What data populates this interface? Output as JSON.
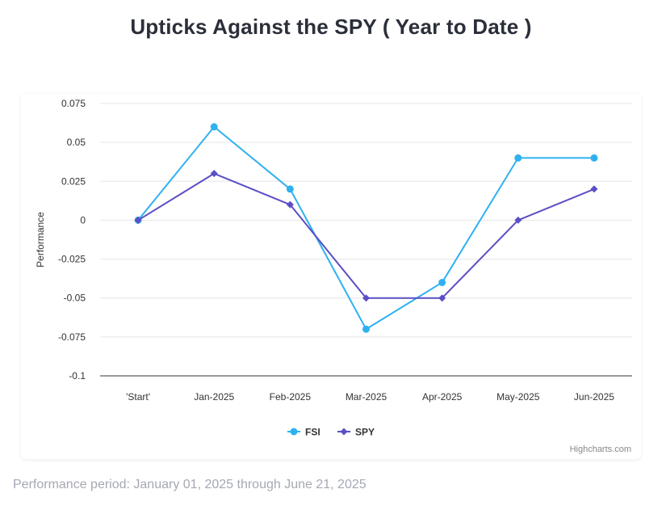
{
  "page": {
    "title": "Upticks Against the SPY ( Year to Date )",
    "performance_note": "Performance period: January 01, 2025 through June 21, 2025",
    "credits": "Highcharts.com"
  },
  "chart_data": {
    "type": "line",
    "title": "Upticks Against the SPY ( Year to Date )",
    "xlabel": "",
    "ylabel": "Performance",
    "categories": [
      "'Start'",
      "Jan-2025",
      "Feb-2025",
      "Mar-2025",
      "Apr-2025",
      "May-2025",
      "Jun-2025"
    ],
    "ylim": [
      -0.1,
      0.075
    ],
    "yticks": [
      0.075,
      0.05,
      0.025,
      0,
      -0.025,
      -0.05,
      -0.075,
      -0.1
    ],
    "ytick_labels": [
      "0.075",
      "0.05",
      "0.025",
      "0",
      "-0.025",
      "-0.05",
      "-0.075",
      "-0.1"
    ],
    "grid": true,
    "legend_position": "bottom-center",
    "series": [
      {
        "name": "FSI",
        "values": [
          0,
          0.06,
          0.02,
          -0.07,
          -0.04,
          0.04,
          0.04
        ],
        "color": "#2fb1f0",
        "marker": "circle"
      },
      {
        "name": "SPY",
        "values": [
          0,
          0.03,
          0.01,
          -0.05,
          -0.05,
          0,
          0.02
        ],
        "color": "#5a4fc4",
        "marker": "diamond"
      }
    ]
  }
}
